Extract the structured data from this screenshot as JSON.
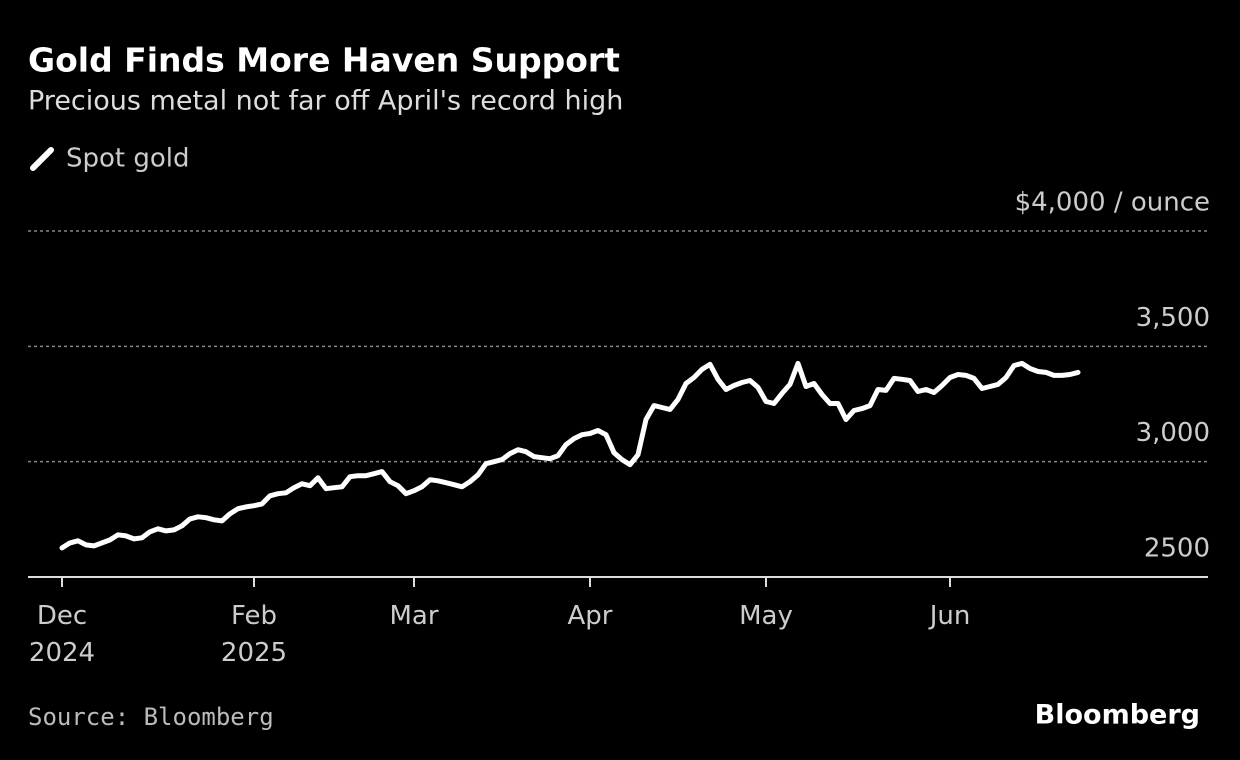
{
  "chart_data": {
    "type": "line",
    "title": "Gold Finds More Haven Support",
    "subtitle": "Precious metal not far off April's record high",
    "source": "Source: Bloomberg",
    "brand": "Bloomberg",
    "categories": [
      "Dec 2024",
      null,
      null,
      null,
      null,
      null,
      null,
      null,
      null,
      null,
      null,
      null,
      null,
      null,
      null,
      null,
      null,
      null,
      null,
      null,
      null,
      null,
      null,
      null,
      "Feb 2025",
      null,
      null,
      null,
      null,
      null,
      null,
      null,
      null,
      null,
      null,
      null,
      null,
      null,
      null,
      null,
      null,
      null,
      null,
      null,
      "Mar",
      null,
      null,
      null,
      null,
      null,
      null,
      null,
      null,
      null,
      null,
      null,
      null,
      null,
      null,
      null,
      null,
      null,
      null,
      null,
      null,
      null,
      "Apr",
      null,
      null,
      null,
      null,
      null,
      null,
      null,
      null,
      null,
      null,
      null,
      null,
      null,
      null,
      null,
      null,
      null,
      null,
      null,
      null,
      null,
      "May",
      null,
      null,
      null,
      null,
      null,
      null,
      null,
      null,
      null,
      null,
      null,
      null,
      null,
      null,
      null,
      null,
      null,
      null,
      null,
      null,
      null,
      null,
      "Jun",
      null,
      null,
      null,
      null,
      null,
      null,
      null,
      null,
      null,
      null,
      null,
      null,
      null,
      null,
      null,
      null
    ],
    "series": [
      {
        "name": "Spot gold",
        "color": "#ffffff",
        "values": [
          2626,
          2648,
          2657,
          2639,
          2635,
          2648,
          2661,
          2683,
          2678,
          2665,
          2670,
          2696,
          2709,
          2700,
          2704,
          2722,
          2752,
          2761,
          2757,
          2748,
          2743,
          2774,
          2796,
          2804,
          2809,
          2817,
          2852,
          2861,
          2865,
          2887,
          2904,
          2896,
          2930,
          2883,
          2887,
          2891,
          2935,
          2939,
          2939,
          2948,
          2957,
          2913,
          2896,
          2861,
          2874,
          2891,
          2922,
          2917,
          2909,
          2900,
          2891,
          2913,
          2943,
          2991,
          3000,
          3009,
          3035,
          3052,
          3043,
          3022,
          3017,
          3013,
          3026,
          3074,
          3100,
          3117,
          3122,
          3135,
          3117,
          3039,
          3009,
          2987,
          3030,
          3183,
          3243,
          3235,
          3226,
          3270,
          3339,
          3365,
          3400,
          3422,
          3357,
          3313,
          3330,
          3343,
          3352,
          3322,
          3261,
          3252,
          3296,
          3335,
          3426,
          3326,
          3339,
          3291,
          3252,
          3252,
          3183,
          3222,
          3230,
          3243,
          3313,
          3309,
          3361,
          3357,
          3352,
          3304,
          3313,
          3300,
          3330,
          3365,
          3378,
          3374,
          3361,
          3317,
          3326,
          3335,
          3365,
          3417,
          3426,
          3404,
          3391,
          3387,
          3374,
          3374,
          3378,
          3387
        ]
      }
    ],
    "ylim": [
      2500,
      4000
    ],
    "yticks": [
      2500,
      {
        "value": 3000,
        "label": "3,000"
      },
      {
        "value": 3500,
        "label": "3,500"
      },
      {
        "value": 4000,
        "label": "$4,000 / ounce"
      }
    ],
    "grid": true
  }
}
